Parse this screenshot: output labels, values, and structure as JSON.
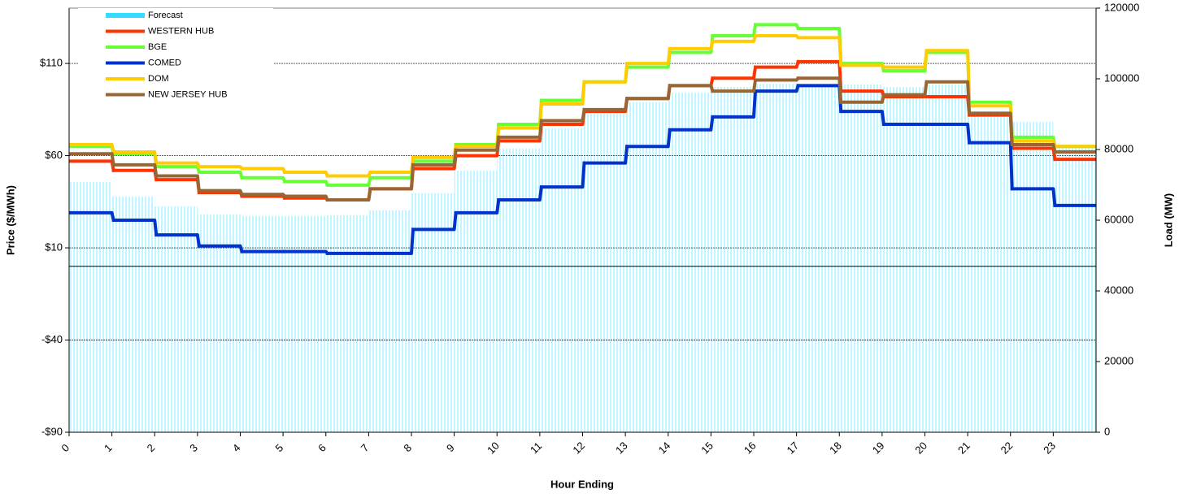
{
  "chart_data": {
    "type": "line",
    "xlabel": "Hour Ending",
    "ylabel": "Price ($/MWh)",
    "y2label": "Load (MW)",
    "x": [
      0,
      1,
      2,
      3,
      4,
      5,
      6,
      7,
      8,
      9,
      10,
      11,
      12,
      13,
      14,
      15,
      16,
      17,
      18,
      19,
      20,
      21,
      22,
      23
    ],
    "xlim": [
      0,
      24
    ],
    "xticks": [
      0,
      1,
      2,
      3,
      4,
      5,
      6,
      7,
      8,
      9,
      10,
      11,
      12,
      13,
      14,
      15,
      16,
      17,
      18,
      19,
      20,
      21,
      22,
      23
    ],
    "ylim": [
      -90,
      140
    ],
    "yticks": [
      {
        "value": -90,
        "label": "-$90"
      },
      {
        "value": -40,
        "label": "-$40"
      },
      {
        "value": 10,
        "label": "$10"
      },
      {
        "value": 60,
        "label": "$60"
      },
      {
        "value": 110,
        "label": "$110"
      }
    ],
    "y2lim": [
      0,
      120000
    ],
    "y2ticks": [
      0,
      20000,
      40000,
      60000,
      80000,
      100000,
      120000
    ],
    "grid": true,
    "legend": "upper left",
    "series": [
      {
        "name": "Forecast",
        "type": "bar",
        "axis": "y2",
        "color": "#33ddff",
        "values": [
          70800,
          66700,
          63900,
          61600,
          61200,
          61200,
          61400,
          62800,
          67600,
          74000,
          80300,
          86000,
          90100,
          93400,
          96100,
          97700,
          98600,
          98600,
          98400,
          97700,
          98400,
          90800,
          87800,
          80500
        ]
      },
      {
        "name": "WESTERN HUB",
        "color": "#ff3300",
        "values": [
          57,
          52,
          47,
          40,
          38,
          37,
          36,
          42,
          53,
          60,
          68,
          77,
          84,
          91,
          98,
          102,
          108,
          111,
          95,
          92,
          92,
          82,
          64,
          58
        ]
      },
      {
        "name": "BGE",
        "color": "#66ff33",
        "values": [
          65,
          61,
          54,
          51,
          48,
          46,
          44,
          48,
          57,
          66,
          77,
          90,
          100,
          108,
          116,
          125,
          131,
          129,
          110,
          106,
          116,
          89,
          70,
          65
        ]
      },
      {
        "name": "COMED",
        "color": "#0033cc",
        "values": [
          29,
          25,
          17,
          11,
          8,
          8,
          7,
          7,
          20,
          29,
          36,
          43,
          56,
          65,
          74,
          81,
          95,
          98,
          84,
          77,
          77,
          67,
          42,
          33
        ]
      },
      {
        "name": "DOM",
        "color": "#ffcc00",
        "values": [
          66,
          62,
          56,
          54,
          53,
          51,
          49,
          51,
          59,
          65,
          75,
          88,
          100,
          110,
          118,
          122,
          125,
          124,
          109,
          108,
          117,
          87,
          68,
          65
        ]
      },
      {
        "name": "NEW JERSEY HUB",
        "color": "#996633",
        "values": [
          61,
          55,
          49,
          41,
          39,
          38,
          36,
          42,
          55,
          63,
          70,
          79,
          85,
          91,
          98,
          95,
          101,
          102,
          89,
          93,
          100,
          83,
          66,
          62
        ]
      }
    ]
  }
}
